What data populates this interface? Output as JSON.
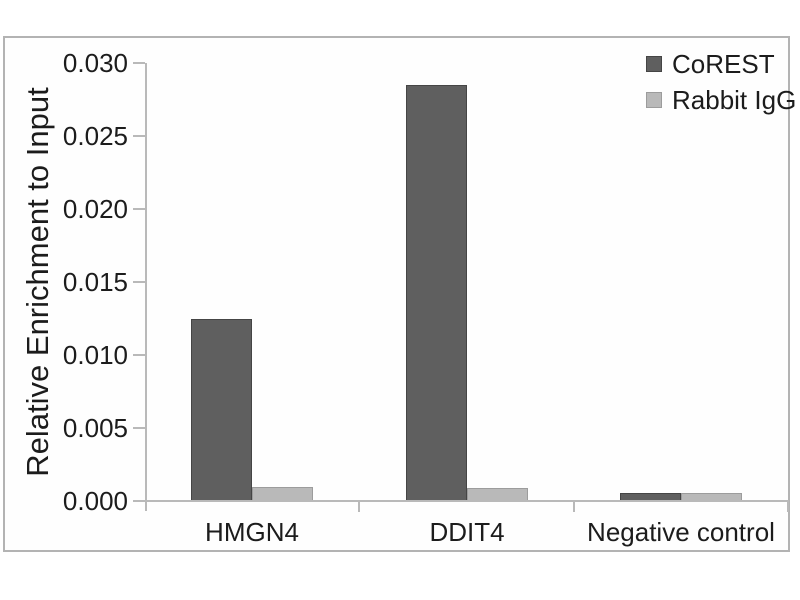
{
  "chart_data": {
    "type": "bar",
    "title": "",
    "xlabel": "",
    "ylabel": "Relative Enrichment to Input",
    "categories": [
      "HMGN4",
      "DDIT4",
      "Negative control"
    ],
    "series": [
      {
        "name": "CoREST",
        "color": "#5f5f5f",
        "border_color": "#454545",
        "values": [
          0.0124,
          0.0284,
          0.0005
        ]
      },
      {
        "name": "Rabbit IgG",
        "color": "#b9b9b9",
        "border_color": "#9c9c9c",
        "values": [
          0.0009,
          0.0008,
          0.0005
        ]
      }
    ],
    "ylim": [
      0,
      0.03
    ],
    "ytick_step": 0.005,
    "ytick_labels": [
      "0.000",
      "0.005",
      "0.010",
      "0.015",
      "0.020",
      "0.025",
      "0.030"
    ],
    "legend_position": "top-right",
    "grid": false,
    "axis_color": "#b9b9b9",
    "text_color": "#1c1c1c",
    "frame_color": "#b3b3b3"
  }
}
